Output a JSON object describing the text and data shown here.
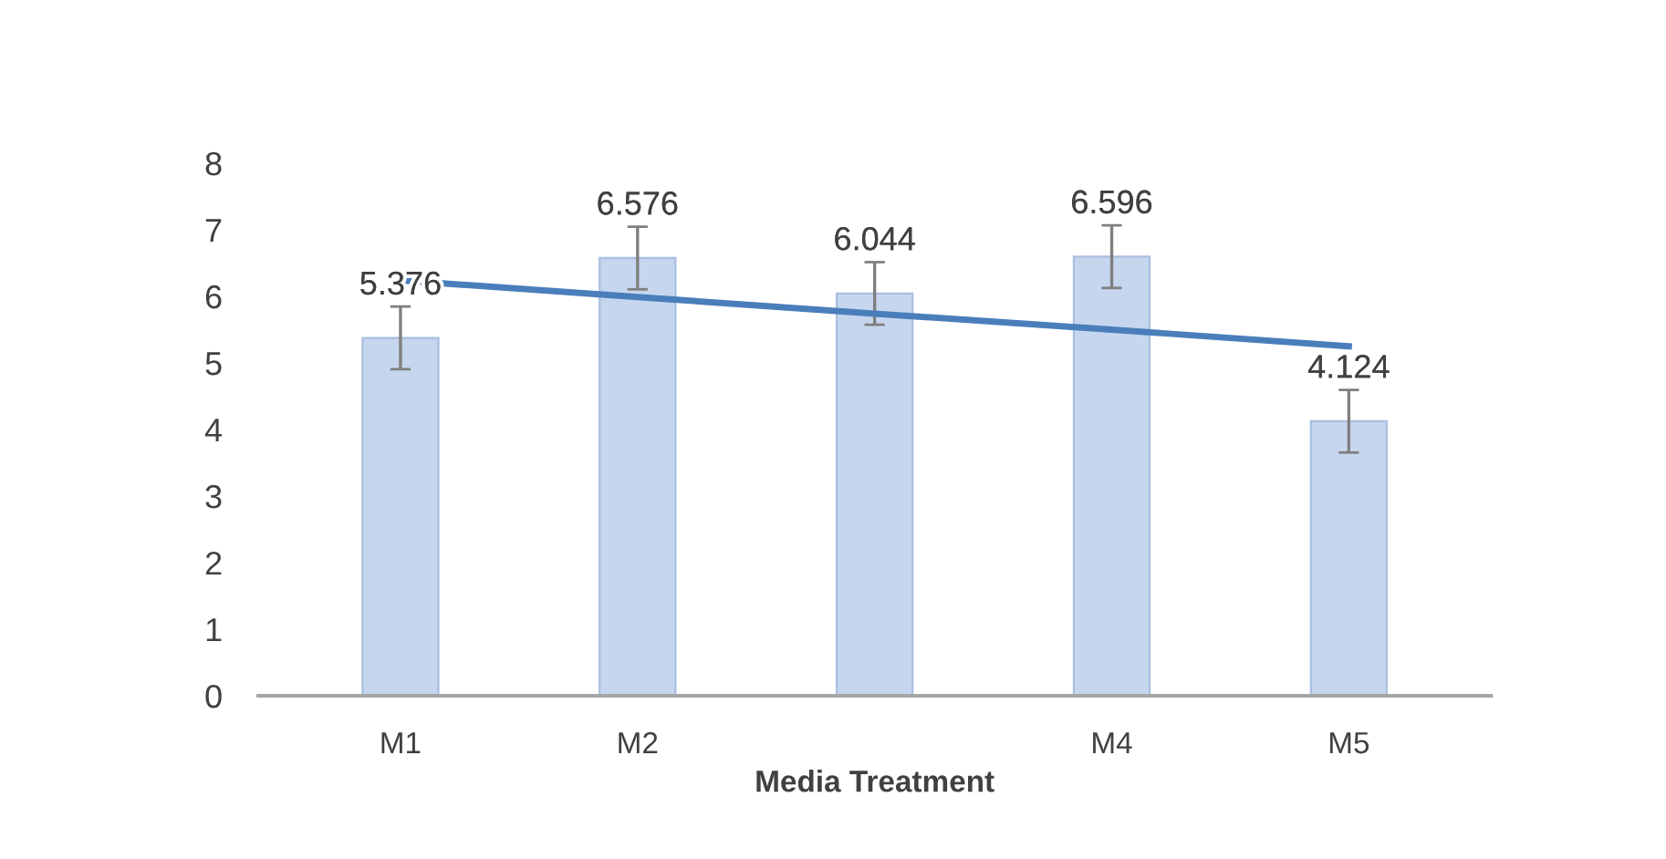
{
  "chart_data": {
    "type": "bar",
    "xlabel": "Media Treatment",
    "categories": [
      "M1",
      "M2",
      null,
      "M4",
      "M5"
    ],
    "series": [
      {
        "color": "#c6d6ee",
        "values": [
          5.376,
          6.576,
          6.044,
          6.596,
          4.124
        ],
        "errors": [
          0.47,
          0.47,
          0.47,
          0.47,
          0.47
        ],
        "value_labels": [
          "5.376",
          "6.576",
          "6.044",
          "6.596",
          "4.124"
        ]
      },
      {
        "type": "line",
        "color": "#4a7ebb",
        "values": [
          6.24,
          5.99,
          5.74,
          5.5,
          5.25
        ]
      }
    ],
    "ylim": [
      0,
      8
    ],
    "yticks": [
      0,
      1,
      2,
      3,
      4,
      5,
      6,
      7,
      8
    ],
    "grid": false,
    "legend": false
  }
}
